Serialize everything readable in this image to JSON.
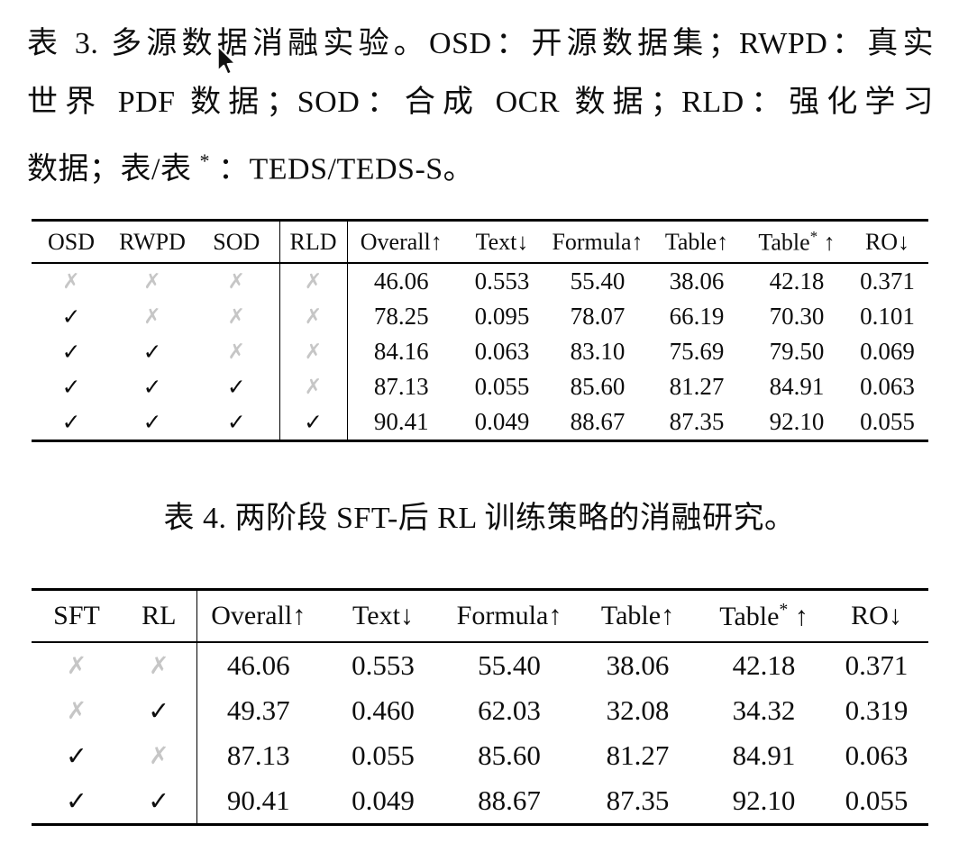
{
  "page": {
    "background": "#ffffff",
    "text_color": "#0d0d0d",
    "rule_color": "#000000",
    "cross_color": "#c6c6c6"
  },
  "cursor": {
    "icon": "arrow-cursor"
  },
  "table3_caption": {
    "lines": [
      "表 3. 多源数据消融实验。OSD：开源数据集；RWPD：真实",
      "世界 PDF 数据；SOD：合成 OCR 数据；RLD：强化学习",
      "数据；表/表 * ：TEDS/TEDS-S。"
    ]
  },
  "table3": {
    "headers": [
      "OSD",
      "RWPD",
      "SOD",
      "RLD",
      "Overall↑",
      "Text↓",
      "Formula↑",
      "Table↑",
      "Table* ↑",
      "RO↓"
    ],
    "rows": [
      [
        "✗",
        "✗",
        "✗",
        "✗",
        "46.06",
        "0.553",
        "55.40",
        "38.06",
        "42.18",
        "0.371"
      ],
      [
        "✓",
        "✗",
        "✗",
        "✗",
        "78.25",
        "0.095",
        "78.07",
        "66.19",
        "70.30",
        "0.101"
      ],
      [
        "✓",
        "✓",
        "✗",
        "✗",
        "84.16",
        "0.063",
        "83.10",
        "75.69",
        "79.50",
        "0.069"
      ],
      [
        "✓",
        "✓",
        "✓",
        "✗",
        "87.13",
        "0.055",
        "85.60",
        "81.27",
        "84.91",
        "0.063"
      ],
      [
        "✓",
        "✓",
        "✓",
        "✓",
        "90.41",
        "0.049",
        "88.67",
        "87.35",
        "92.10",
        "0.055"
      ]
    ]
  },
  "table4_caption": {
    "text": "表 4. 两阶段 SFT-后 RL 训练策略的消融研究。"
  },
  "table4": {
    "headers": [
      "SFT",
      "RL",
      "Overall↑",
      "Text↓",
      "Formula↑",
      "Table↑",
      "Table* ↑",
      "RO↓"
    ],
    "rows": [
      [
        "✗",
        "✗",
        "46.06",
        "0.553",
        "55.40",
        "38.06",
        "42.18",
        "0.371"
      ],
      [
        "✗",
        "✓",
        "49.37",
        "0.460",
        "62.03",
        "32.08",
        "34.32",
        "0.319"
      ],
      [
        "✓",
        "✗",
        "87.13",
        "0.055",
        "85.60",
        "81.27",
        "84.91",
        "0.063"
      ],
      [
        "✓",
        "✓",
        "90.41",
        "0.049",
        "88.67",
        "87.35",
        "92.10",
        "0.055"
      ]
    ]
  }
}
